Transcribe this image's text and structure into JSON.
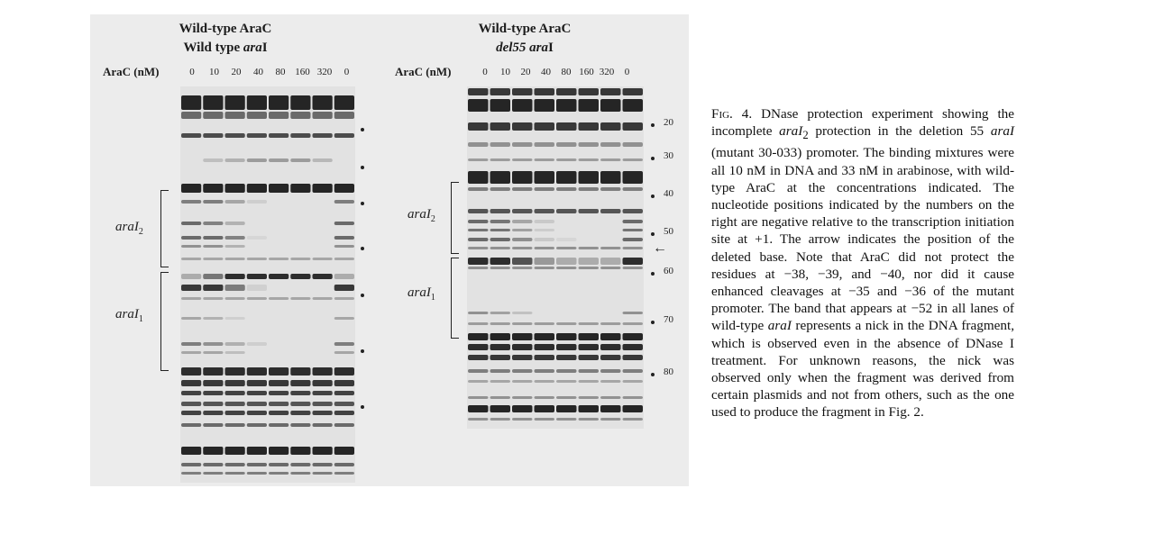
{
  "figure": {
    "left_panel": {
      "title_line1": "Wild-type AraC",
      "title_line2_prefix": "Wild type ",
      "title_line2_italic": "ara",
      "title_line2_suffix": "I",
      "axis_label": "AraC (nM)",
      "lanes": [
        "0",
        "10",
        "20",
        "40",
        "80",
        "160",
        "320",
        "0"
      ],
      "region2": {
        "italic": "ara",
        "roman": "I",
        "sub": "2"
      },
      "region1": {
        "italic": "ara",
        "roman": "I",
        "sub": "1"
      }
    },
    "right_panel": {
      "title_line1": "Wild-type AraC",
      "title_line2_italic": "del55 ara",
      "title_line2_suffix": "I",
      "axis_label": "AraC (nM)",
      "lanes": [
        "0",
        "10",
        "20",
        "40",
        "80",
        "160",
        "320",
        "0"
      ],
      "region2": {
        "italic": "ara",
        "roman": "I",
        "sub": "2"
      },
      "region1": {
        "italic": "ara",
        "roman": "I",
        "sub": "1"
      },
      "position_markers": [
        "20",
        "30",
        "40",
        "50",
        "60",
        "70",
        "80"
      ],
      "arrow": "←"
    }
  },
  "caption": {
    "label": "Fig. 4.",
    "text_parts": [
      " DNase protection experiment showing the incomplete ",
      "araI",
      " protection in the deletion 55 ",
      "araI",
      " (mutant 30-033) promoter. The binding mixtures were all 10 nM in DNA and 33 nM in arabinose, with wild-type AraC at the concentrations indicated. The nucleotide positions indicated by the numbers on the right are negative relative to the transcription initiation site at +1. The arrow indicates the position of the deleted base. Note that AraC did not protect the residues at −38, −39, and −40, nor did it cause enhanced cleavages at −35 and −36 of the mutant promoter. The band that appears at −52 in all lanes of wild-type ",
      "araI",
      " represents a nick in the DNA fragment, which is observed even in the absence of DNase I treatment. For unknown reasons, the nick was observed only when the fragment was derived from certain plasmids and not from others, such as the one used to produce the fragment in Fig. 2."
    ],
    "sub2": "2"
  }
}
